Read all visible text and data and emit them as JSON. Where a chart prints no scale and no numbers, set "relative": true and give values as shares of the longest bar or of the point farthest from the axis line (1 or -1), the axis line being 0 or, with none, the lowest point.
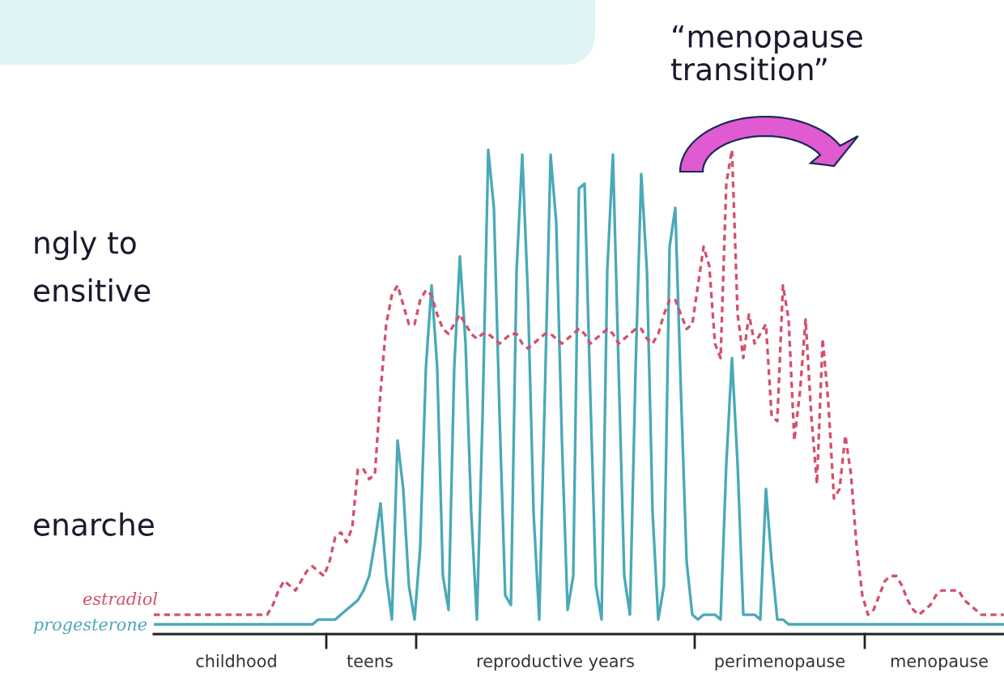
{
  "chart_data": {
    "type": "line",
    "relative": true,
    "categories": [
      null,
      null,
      null,
      null,
      null,
      null,
      null,
      null,
      null,
      null,
      null,
      null,
      null,
      null,
      null,
      null,
      null,
      null,
      null,
      null,
      null,
      null,
      null,
      null,
      null,
      null,
      null,
      null,
      null,
      null,
      null,
      null,
      null,
      null,
      null,
      null,
      null,
      null,
      null,
      null,
      null,
      null,
      null,
      null,
      null,
      null,
      null,
      null,
      null,
      null,
      null,
      null,
      null,
      null,
      null,
      null,
      null,
      null,
      null,
      null,
      null,
      null,
      null,
      null,
      null,
      null,
      null,
      null,
      null,
      null,
      null,
      null,
      null,
      null,
      null,
      null,
      null,
      null,
      null,
      null,
      null,
      null,
      null,
      null,
      null,
      null,
      null,
      null,
      null,
      null,
      null,
      null,
      null,
      null,
      null,
      null,
      null,
      null,
      null,
      null,
      null,
      null,
      null,
      null,
      null,
      null,
      null,
      null,
      null,
      null,
      null,
      null,
      null,
      null,
      null,
      null,
      null,
      null,
      null,
      null,
      null,
      null,
      null,
      null,
      null,
      null,
      null,
      null,
      null,
      null,
      null,
      null,
      null,
      null,
      null,
      null,
      null,
      null,
      null,
      null,
      null,
      null,
      null,
      null,
      null,
      null,
      null,
      null,
      null,
      null,
      null
    ],
    "annotations": [
      "“menopause\ntransition”",
      "ngly to",
      "ensitive",
      "enarche",
      "childhood",
      "teens",
      "reproductive years",
      "perimenopause",
      "menopause"
    ],
    "series": [
      {
        "name": "estradiol",
        "color": "#d4506b",
        "line_style": "dashed",
        "values": [
          0.04,
          0.04,
          0.04,
          0.04,
          0.04,
          0.04,
          0.04,
          0.04,
          0.04,
          0.04,
          0.04,
          0.04,
          0.04,
          0.04,
          0.04,
          0.04,
          0.04,
          0.04,
          0.04,
          0.04,
          0.04,
          0.06,
          0.09,
          0.11,
          0.1,
          0.09,
          0.11,
          0.13,
          0.14,
          0.13,
          0.12,
          0.15,
          0.2,
          0.21,
          0.19,
          0.22,
          0.34,
          0.34,
          0.32,
          0.33,
          0.5,
          0.64,
          0.7,
          0.72,
          0.68,
          0.64,
          0.64,
          0.69,
          0.71,
          0.7,
          0.66,
          0.63,
          0.62,
          0.64,
          0.66,
          0.64,
          0.62,
          0.61,
          0.62,
          0.62,
          0.61,
          0.6,
          0.61,
          0.62,
          0.62,
          0.6,
          0.59,
          0.6,
          0.61,
          0.62,
          0.62,
          0.61,
          0.6,
          0.61,
          0.62,
          0.63,
          0.62,
          0.6,
          0.61,
          0.62,
          0.63,
          0.62,
          0.6,
          0.61,
          0.62,
          0.63,
          0.63,
          0.61,
          0.6,
          0.62,
          0.66,
          0.69,
          0.69,
          0.66,
          0.63,
          0.64,
          0.72,
          0.8,
          0.76,
          0.6,
          0.57,
          0.93,
          1.0,
          0.66,
          0.57,
          0.66,
          0.6,
          0.62,
          0.64,
          0.45,
          0.44,
          0.72,
          0.65,
          0.4,
          0.5,
          0.65,
          0.45,
          0.31,
          0.61,
          0.48,
          0.28,
          0.3,
          0.41,
          0.33,
          0.18,
          0.08,
          0.04,
          0.05,
          0.08,
          0.11,
          0.12,
          0.12,
          0.1,
          0.07,
          0.05,
          0.04,
          0.05,
          0.06,
          0.08,
          0.09,
          0.09,
          0.09,
          0.09,
          0.07,
          0.06,
          0.05,
          0.04,
          0.04,
          0.04,
          0.04,
          0.04
        ]
      },
      {
        "name": "progesterone",
        "color": "#4aa9b7",
        "line_style": "solid",
        "values": [
          0.02,
          0.02,
          0.02,
          0.02,
          0.02,
          0.02,
          0.02,
          0.02,
          0.02,
          0.02,
          0.02,
          0.02,
          0.02,
          0.02,
          0.02,
          0.02,
          0.02,
          0.02,
          0.02,
          0.02,
          0.02,
          0.02,
          0.02,
          0.02,
          0.02,
          0.02,
          0.02,
          0.02,
          0.02,
          0.03,
          0.03,
          0.03,
          0.03,
          0.04,
          0.05,
          0.06,
          0.07,
          0.09,
          0.12,
          0.19,
          0.27,
          0.12,
          0.03,
          0.4,
          0.3,
          0.1,
          0.03,
          0.18,
          0.55,
          0.72,
          0.55,
          0.12,
          0.05,
          0.55,
          0.78,
          0.6,
          0.25,
          0.03,
          0.45,
          1.0,
          0.88,
          0.45,
          0.08,
          0.06,
          0.75,
          0.99,
          0.7,
          0.25,
          0.03,
          0.5,
          0.99,
          0.85,
          0.4,
          0.05,
          0.12,
          0.92,
          0.93,
          0.5,
          0.1,
          0.03,
          0.75,
          0.99,
          0.55,
          0.12,
          0.04,
          0.55,
          0.95,
          0.75,
          0.25,
          0.03,
          0.1,
          0.8,
          0.88,
          0.5,
          0.15,
          0.04,
          0.03,
          0.04,
          0.04,
          0.04,
          0.03,
          0.35,
          0.57,
          0.35,
          0.04,
          0.04,
          0.04,
          0.03,
          0.3,
          0.15,
          0.03,
          0.03,
          0.02,
          0.02,
          0.02,
          0.02,
          0.02,
          0.02,
          0.02,
          0.02,
          0.02,
          0.02,
          0.02,
          0.02,
          0.02,
          0.02,
          0.02,
          0.02,
          0.02,
          0.02,
          0.02,
          0.02,
          0.02,
          0.02,
          0.02,
          0.02,
          0.02,
          0.02,
          0.02,
          0.02,
          0.02,
          0.02,
          0.02,
          0.02,
          0.02,
          0.02,
          0.02,
          0.02,
          0.02,
          0.02,
          0.02
        ]
      }
    ]
  }
}
